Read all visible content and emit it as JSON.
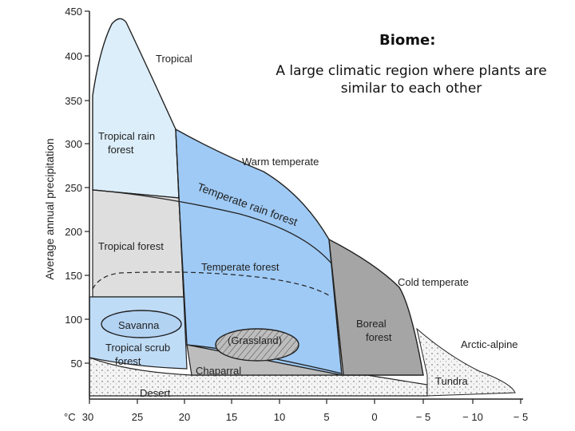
{
  "heading": {
    "title": "Biome:",
    "definition": "A large climatic region where plants are similar to each other"
  },
  "colors": {
    "tropical_rain_forest": "#dceefa",
    "tropical_region": "#c5e1f7",
    "tropical_forest": "#dedede",
    "tropical_scrub": "#bfdcf7",
    "temperate": "#9fcaf5",
    "boreal": "#a5a5a5",
    "chaparral": "#bdbdbd",
    "desert": "#f2f2f2",
    "arctic": "#f5f5f5"
  },
  "chart_data": {
    "type": "diagram",
    "xlabel": "°C",
    "ylabel": "Average annual precipitation",
    "x_ticks": [
      "30",
      "25",
      "20",
      "15",
      "10",
      "5",
      "0",
      "− 5",
      "− 10",
      "− 5"
    ],
    "y_ticks": [
      "450",
      "400",
      "350",
      "300",
      "250",
      "200",
      "150",
      "100",
      "50"
    ],
    "region_labels": {
      "tropical": "Tropical",
      "warm_temperate": "Warm temperate",
      "cold_temperate": "Cold temperate",
      "arctic_alpine": "Arctic-alpine",
      "tropical_rain_forest": "Tropical rain\nforest",
      "temperate_rain_forest": "Temperate rain forest",
      "tropical_forest": "Tropical forest",
      "temperate_forest": "Temperate forest",
      "savanna": "Savanna",
      "tropical_scrub_forest": "Tropical scrub\nforest",
      "grassland": "(Grassland)",
      "chaparral": "Chaparral",
      "boreal_forest": "Boreal\nforest",
      "tundra": "Tundra",
      "desert": "Desert"
    }
  }
}
